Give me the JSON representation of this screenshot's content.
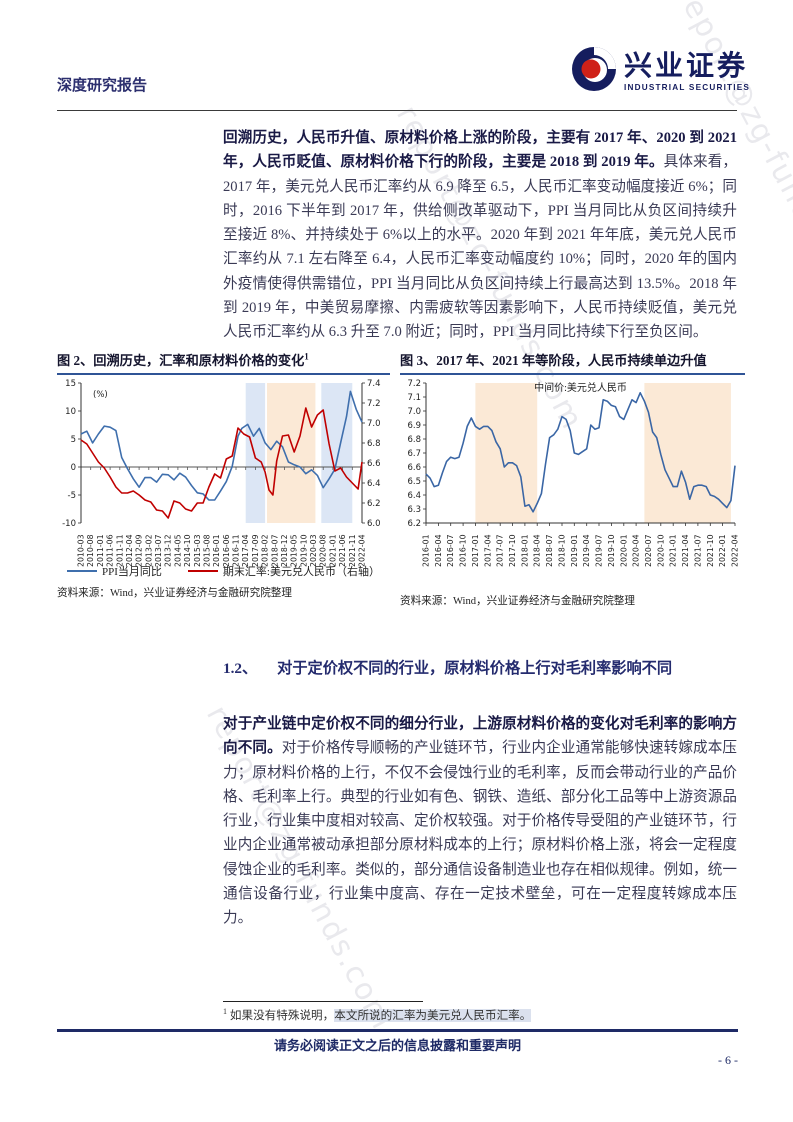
{
  "header": {
    "report_type": "深度研究报告",
    "brand": "兴业证券",
    "brand_en": "INDUSTRIAL SECURITIES"
  },
  "watermark": {
    "text": "report@zg-funds.com"
  },
  "para1": {
    "bold": "回溯历史，人民币升值、原材料价格上涨的阶段，主要有 2017 年、2020 到 2021 年，人民币贬值、原材料价格下行的阶段，主要是 2018 到 2019 年。",
    "regular": "具体来看，2017 年，美元兑人民币汇率约从 6.9 降至 6.5，人民币汇率变动幅度接近 6%；同时，2016 下半年到 2017 年，供给侧改革驱动下，PPI 当月同比从负区间持续升至接近 8%、并持续处于 6%以上的水平。2020 年到 2021 年年底，美元兑人民币汇率约从 7.1 左右降至 6.4，人民币汇率变动幅度约 10%；同时，2020 年的国内外疫情使得供需错位，PPI 当月同比从负区间持续上行最高达到 13.5%。2018 年到 2019 年，中美贸易摩擦、内需疲软等因素影响下，人民币持续贬值，美元兑人民币汇率约从 6.3 升至 7.0 附近；同时，PPI 当月同比持续下行至负区间。"
  },
  "section": {
    "number": "1.2、",
    "title": "对于定价权不同的行业，原材料价格上行对毛利率影响不同"
  },
  "para2": {
    "bold": "对于产业链中定价权不同的细分行业，上游原材料价格的变化对毛利率的影响方向不同。",
    "regular": "对于价格传导顺畅的产业链环节，行业内企业通常能够快速转嫁成本压力；原材料价格的上行，不仅不会侵蚀行业的毛利率，反而会带动行业的产品价格、毛利率上行。典型的行业如有色、钢铁、造纸、部分化工品等中上游资源品行业，行业集中度相对较高、定价权较强。对于价格传导受阻的产业链环节，行业内企业通常被动承担部分原材料成本的上行；原材料价格上涨，将会一定程度侵蚀企业的毛利率。类似的，部分通信设备制造业也存在相似规律。例如，统一通信设备行业，行业集中度高、存在一定技术壁垒，可在一定程度转嫁成本压力。"
  },
  "footnote": {
    "marker": "1",
    "lead": " 如果没有特殊说明，",
    "highlight": "本文所说的汇率为美元兑人民币汇率。"
  },
  "footer": {
    "disclaimer": "请务必阅读正文之后的信息披露和重要声明",
    "page": "- 6 -"
  },
  "colors": {
    "heading_navy": "#242b6e",
    "footer_navy": "#1e2a66",
    "title_underline": "#2f5496",
    "ppi_blue": "#3f6fad",
    "fx_red": "#c00000",
    "band_blue": "#dce6f5",
    "band_orange": "#fbe9d6",
    "footnote_highlight": "#dbe1ee",
    "logo_navy": "#151d5e",
    "logo_red": "#cf2118"
  },
  "chart_data": [
    {
      "type": "line",
      "title": "图 2、回溯历史，汇率和原材料价格的变化",
      "title_sup": "1",
      "inner_label": "(%)",
      "source": "资料来源：Wind，兴业证券经济与金融研究院整理",
      "x_span": 145,
      "x_tick_step": 5,
      "x_tick_labels": [
        "2010-03",
        "2010-08",
        "2011-01",
        "2011-06",
        "2011-11",
        "2012-04",
        "2012-09",
        "2013-02",
        "2013-07",
        "2013-12",
        "2014-05",
        "2014-10",
        "2015-03",
        "2015-08",
        "2016-01",
        "2016-06",
        "2016-11",
        "2017-04",
        "2017-09",
        "2018-02",
        "2018-07",
        "2018-12",
        "2019-05",
        "2019-10",
        "2020-03",
        "2020-08",
        "2021-01",
        "2021-06",
        "2021-11",
        "2022-04"
      ],
      "left_axis": {
        "min": -10,
        "max": 15,
        "tick_labels": [
          "15",
          "10",
          "5",
          "0",
          "-5",
          "-10"
        ]
      },
      "right_axis": {
        "min": 6.0,
        "max": 7.4,
        "tick_labels": [
          "7.4",
          "7.2",
          "7.0",
          "6.8",
          "6.6",
          "6.4",
          "6.2",
          "6.0"
        ]
      },
      "zero_line": true,
      "bands": [
        {
          "from": 85,
          "to": 95,
          "color": "#dce6f5"
        },
        {
          "from": 96,
          "to": 121,
          "color": "#fbe9d6"
        },
        {
          "from": 124,
          "to": 140,
          "color": "#dce6f5"
        }
      ],
      "series": [
        {
          "name": "PPI当月同比",
          "axis": "left",
          "color": "#3f6fad",
          "x": [
            0,
            3,
            6,
            9,
            12,
            15,
            18,
            21,
            24,
            27,
            30,
            33,
            36,
            39,
            42,
            45,
            48,
            51,
            54,
            57,
            60,
            63,
            66,
            69,
            72,
            75,
            78,
            81,
            83,
            86,
            89,
            92,
            95,
            98,
            101,
            104,
            107,
            110,
            113,
            116,
            119,
            122,
            125,
            128,
            131,
            134,
            137,
            139,
            142,
            145
          ],
          "y": [
            5.9,
            6.4,
            4.3,
            5.9,
            7.3,
            7.1,
            6.5,
            1.7,
            -0.3,
            -2.1,
            -3.6,
            -1.9,
            -1.9,
            -2.7,
            -1.3,
            -1.4,
            -2.3,
            -1.1,
            -1.8,
            -3.3,
            -4.6,
            -4.8,
            -5.9,
            -5.9,
            -4.3,
            -2.6,
            0.1,
            5.5,
            6.9,
            7.6,
            5.5,
            6.9,
            4.3,
            3.1,
            4.6,
            3.6,
            0.9,
            0.4,
            0.0,
            -1.2,
            -0.5,
            -1.5,
            -3.7,
            -2.1,
            -0.4,
            4.4,
            9.0,
            13.5,
            10.3,
            8.0
          ]
        },
        {
          "name": "期末汇率:美元兑人民币（右轴）",
          "axis": "right",
          "color": "#c00000",
          "x": [
            0,
            3,
            6,
            9,
            12,
            15,
            18,
            21,
            24,
            27,
            30,
            33,
            36,
            39,
            42,
            45,
            48,
            51,
            54,
            57,
            60,
            63,
            66,
            69,
            72,
            75,
            78,
            81,
            84,
            87,
            90,
            93,
            95,
            97,
            99,
            101,
            104,
            107,
            110,
            113,
            116,
            119,
            122,
            125,
            128,
            131,
            134,
            137,
            140,
            143,
            145
          ],
          "y": [
            6.83,
            6.79,
            6.7,
            6.61,
            6.55,
            6.46,
            6.36,
            6.3,
            6.3,
            6.32,
            6.28,
            6.23,
            6.21,
            6.13,
            6.12,
            6.05,
            6.22,
            6.2,
            6.14,
            6.12,
            6.2,
            6.2,
            6.36,
            6.49,
            6.45,
            6.64,
            6.67,
            6.95,
            6.89,
            6.86,
            6.65,
            6.61,
            6.51,
            6.33,
            6.28,
            6.62,
            6.87,
            6.88,
            6.71,
            6.87,
            7.15,
            6.96,
            7.08,
            7.13,
            6.79,
            6.52,
            6.55,
            6.46,
            6.4,
            6.34,
            6.61
          ]
        }
      ],
      "margins": {
        "l": 24,
        "r": 28,
        "t": 6,
        "b": 46
      }
    },
    {
      "type": "line",
      "title": "图 3、2017 年、2021 年等阶段，人民币持续单边升值",
      "inner_title": "中间价:美元兑人民币",
      "source": "资料来源：Wind，兴业证券经济与金融研究院整理",
      "x_span": 75,
      "x_tick_step": 3,
      "x_tick_labels": [
        "2016-01",
        "2016-04",
        "2016-07",
        "2016-10",
        "2017-01",
        "2017-04",
        "2017-07",
        "2017-10",
        "2018-01",
        "2018-04",
        "2018-07",
        "2018-10",
        "2019-01",
        "2019-04",
        "2019-07",
        "2019-10",
        "2020-01",
        "2020-04",
        "2020-07",
        "2020-10",
        "2021-01",
        "2021-04",
        "2021-07",
        "2021-10",
        "2022-01",
        "2022-04"
      ],
      "left_axis": {
        "min": 6.2,
        "max": 7.2,
        "tick_labels": [
          "7.2",
          "7.1",
          "7.0",
          "6.9",
          "6.8",
          "6.7",
          "6.6",
          "6.5",
          "6.4",
          "6.3",
          "6.2"
        ]
      },
      "bottom_axis": true,
      "bands": [
        {
          "from": 12,
          "to": 27,
          "color": "#fbe9d6"
        },
        {
          "from": 53,
          "to": 74,
          "color": "#fbe9d6"
        }
      ],
      "series": [
        {
          "name": "中间价:美元兑人民币",
          "axis": "left",
          "color": "#3a66a5",
          "y": [
            6.55,
            6.52,
            6.46,
            6.47,
            6.56,
            6.64,
            6.67,
            6.66,
            6.67,
            6.77,
            6.89,
            6.95,
            6.89,
            6.87,
            6.89,
            6.89,
            6.86,
            6.78,
            6.73,
            6.6,
            6.63,
            6.63,
            6.61,
            6.53,
            6.32,
            6.33,
            6.28,
            6.34,
            6.41,
            6.62,
            6.81,
            6.83,
            6.87,
            6.96,
            6.94,
            6.86,
            6.7,
            6.69,
            6.71,
            6.73,
            6.9,
            6.87,
            6.88,
            7.08,
            7.07,
            7.04,
            7.03,
            6.96,
            6.94,
            7.01,
            7.08,
            7.06,
            7.13,
            7.07,
            6.99,
            6.85,
            6.81,
            6.69,
            6.58,
            6.52,
            6.46,
            6.46,
            6.57,
            6.49,
            6.37,
            6.46,
            6.47,
            6.47,
            6.46,
            6.4,
            6.39,
            6.37,
            6.34,
            6.31,
            6.36,
            6.61
          ]
        }
      ],
      "margins": {
        "l": 26,
        "r": 10,
        "t": 6,
        "b": 46
      }
    }
  ]
}
